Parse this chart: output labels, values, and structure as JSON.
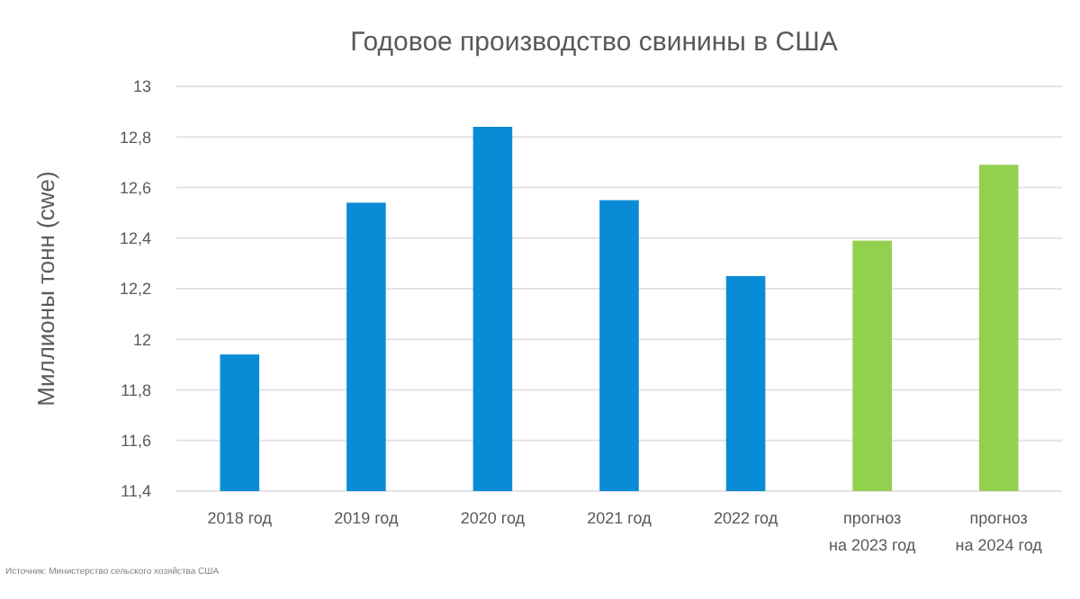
{
  "chart_data": {
    "type": "bar",
    "title": "Годовое производство свинины в США",
    "ylabel": "Миллионы тонн (cwe)",
    "categories": [
      "2018 год",
      "2019 год",
      "2020 год",
      "2021 год",
      "2022 год",
      "прогноз\nна 2023 год",
      "прогноз\nна 2024 год"
    ],
    "values": [
      11.94,
      12.54,
      12.84,
      12.55,
      12.25,
      12.39,
      12.69
    ],
    "colors": [
      "#0a8bd6",
      "#0a8bd6",
      "#0a8bd6",
      "#0a8bd6",
      "#0a8bd6",
      "#92d050",
      "#92d050"
    ],
    "ylim": [
      11.4,
      13
    ],
    "yticks": [
      {
        "value": 11.4,
        "label": "11,4"
      },
      {
        "value": 11.6,
        "label": "11,6"
      },
      {
        "value": 11.8,
        "label": "11,8"
      },
      12,
      {
        "value": 12.2,
        "label": "12,2"
      },
      {
        "value": 12.4,
        "label": "12,4"
      },
      {
        "value": 12.6,
        "label": "12,6"
      },
      {
        "value": 12.8,
        "label": "12,8"
      },
      13
    ],
    "grid": "y",
    "annotations": [
      "Источник: Министерство сельского хозяйства США"
    ]
  }
}
